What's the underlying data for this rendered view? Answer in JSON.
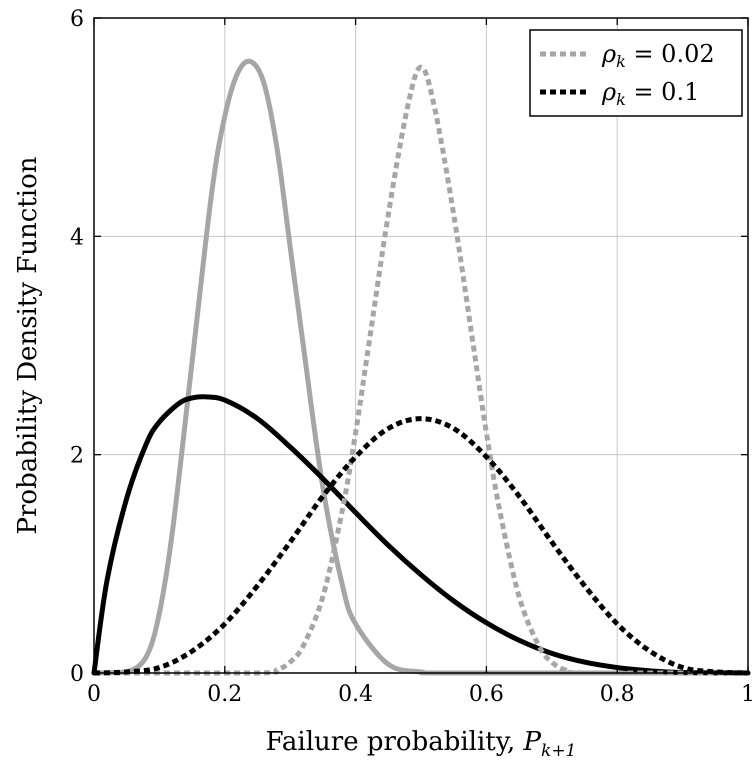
{
  "chart_data": {
    "type": "line",
    "xlabel": "Failure probability, ",
    "xlabel_symbol": "P",
    "xlabel_subscript": "k+1",
    "ylabel": "Probability Density Function",
    "xlim": [
      0,
      1
    ],
    "ylim": [
      0,
      6
    ],
    "xticks": [
      0,
      0.2,
      0.4,
      0.6,
      0.8,
      1
    ],
    "xtick_labels": [
      "0",
      "0.2",
      "0.4",
      "0.6",
      "0.8",
      "1"
    ],
    "yticks": [
      0,
      2,
      4,
      6
    ],
    "ytick_labels": [
      "0",
      "2",
      "4",
      "6"
    ],
    "grid": true,
    "legend_position": "top-right",
    "legend": [
      {
        "symbol": "ρ",
        "subscript": "k",
        "text": " = 0.02",
        "color": "#a6a6a6",
        "dash": "dotted"
      },
      {
        "symbol": "ρ",
        "subscript": "k",
        "text": " = 0.1",
        "color": "#000000",
        "dash": "dotted"
      }
    ],
    "series": [
      {
        "color": "#a6a6a6",
        "style": "solid",
        "x": [
          0,
          0.05,
          0.08,
          0.1,
          0.12,
          0.15,
          0.18,
          0.2,
          0.22,
          0.24,
          0.26,
          0.28,
          0.3,
          0.32,
          0.35,
          0.38,
          0.4,
          0.45,
          0.5,
          0.55,
          1
        ],
        "y": [
          0,
          0.01,
          0.15,
          0.55,
          1.3,
          2.85,
          4.4,
          5.1,
          5.5,
          5.6,
          5.4,
          4.8,
          3.9,
          3.0,
          1.7,
          0.8,
          0.45,
          0.08,
          0.01,
          0,
          0
        ]
      },
      {
        "color": "#000000",
        "style": "solid",
        "x": [
          0,
          0.02,
          0.05,
          0.08,
          0.1,
          0.13,
          0.15,
          0.17,
          0.2,
          0.25,
          0.3,
          0.35,
          0.4,
          0.45,
          0.5,
          0.55,
          0.6,
          0.65,
          0.7,
          0.75,
          0.8,
          0.85,
          0.9,
          1
        ],
        "y": [
          0,
          0.85,
          1.6,
          2.1,
          2.3,
          2.47,
          2.52,
          2.53,
          2.5,
          2.33,
          2.07,
          1.78,
          1.47,
          1.17,
          0.9,
          0.66,
          0.46,
          0.3,
          0.18,
          0.1,
          0.05,
          0.02,
          0.005,
          0
        ]
      },
      {
        "color": "#a6a6a6",
        "style": "dotted",
        "x": [
          0,
          0.25,
          0.28,
          0.3,
          0.32,
          0.35,
          0.38,
          0.4,
          0.42,
          0.45,
          0.48,
          0.5,
          0.52,
          0.55,
          0.58,
          0.6,
          0.62,
          0.65,
          0.68,
          0.7,
          0.72,
          0.75,
          1
        ],
        "y": [
          0,
          0,
          0.03,
          0.1,
          0.25,
          0.7,
          1.5,
          2.2,
          3.0,
          4.2,
          5.2,
          5.55,
          5.2,
          4.2,
          3.0,
          2.2,
          1.5,
          0.7,
          0.25,
          0.1,
          0.03,
          0,
          0
        ]
      },
      {
        "color": "#000000",
        "style": "dotted",
        "x": [
          0,
          0.05,
          0.1,
          0.15,
          0.2,
          0.25,
          0.3,
          0.35,
          0.4,
          0.45,
          0.5,
          0.55,
          0.6,
          0.65,
          0.7,
          0.75,
          0.8,
          0.85,
          0.9,
          0.95,
          1
        ],
        "y": [
          0,
          0.01,
          0.05,
          0.2,
          0.45,
          0.8,
          1.2,
          1.62,
          1.98,
          2.24,
          2.33,
          2.24,
          1.98,
          1.62,
          1.2,
          0.8,
          0.45,
          0.2,
          0.05,
          0.01,
          0
        ]
      }
    ]
  }
}
